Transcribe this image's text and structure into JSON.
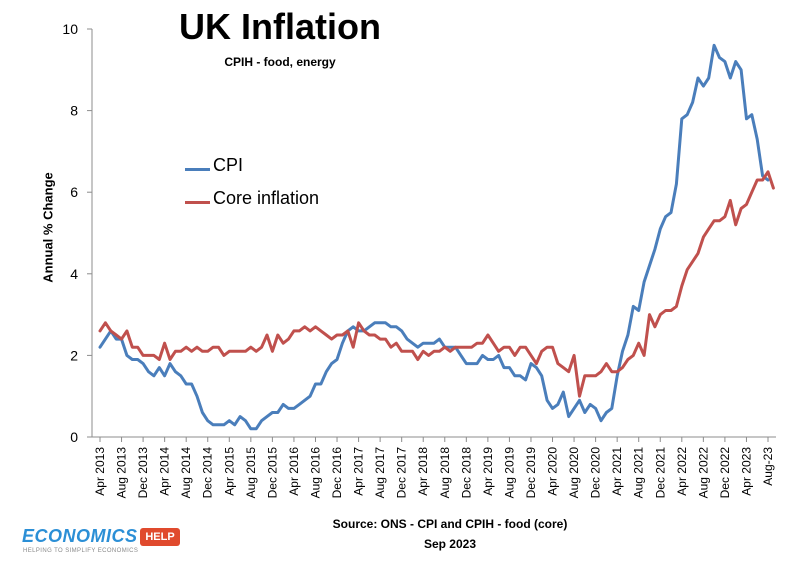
{
  "chart_data": {
    "type": "line",
    "title": "UK Inflation",
    "subtitle": "CPIH - food, energy",
    "ylabel": "Annual % Change",
    "xlabel": "",
    "ylim": [
      0,
      10
    ],
    "yticks": [
      0,
      2,
      4,
      6,
      8,
      10
    ],
    "x_tick_labels": [
      "Apr 2013",
      "Aug 2013",
      "Dec 2013",
      "Apr 2014",
      "Aug 2014",
      "Dec 2014",
      "Apr 2015",
      "Aug 2015",
      "Dec 2015",
      "Apr 2016",
      "Aug 2016",
      "Dec 2016",
      "Apr 2017",
      "Aug 2017",
      "Dec 2017",
      "Apr 2018",
      "Aug 2018",
      "Dec 2018",
      "Apr 2019",
      "Aug 2019",
      "Dec 2019",
      "Apr 2020",
      "Aug 2020",
      "Dec 2020",
      "Apr 2021",
      "Aug 2021",
      "Dec 2021",
      "Apr 2022",
      "Aug 2022",
      "Dec 2022",
      "Apr 2023",
      "Aug-23"
    ],
    "legend_position": "left-middle",
    "series": [
      {
        "name": "CPI",
        "color": "#4a7ebb",
        "values": [
          2.2,
          2.4,
          2.6,
          2.4,
          2.4,
          2.0,
          1.9,
          1.9,
          1.8,
          1.6,
          1.5,
          1.7,
          1.5,
          1.8,
          1.6,
          1.5,
          1.3,
          1.3,
          1.0,
          0.6,
          0.4,
          0.3,
          0.3,
          0.3,
          0.4,
          0.3,
          0.5,
          0.4,
          0.2,
          0.2,
          0.4,
          0.5,
          0.6,
          0.6,
          0.8,
          0.7,
          0.7,
          0.8,
          0.9,
          1.0,
          1.3,
          1.3,
          1.6,
          1.8,
          1.9,
          2.3,
          2.6,
          2.7,
          2.6,
          2.6,
          2.7,
          2.8,
          2.8,
          2.8,
          2.7,
          2.7,
          2.6,
          2.4,
          2.3,
          2.2,
          2.3,
          2.3,
          2.3,
          2.4,
          2.2,
          2.2,
          2.2,
          2.0,
          1.8,
          1.8,
          1.8,
          2.0,
          1.9,
          1.9,
          2.0,
          1.7,
          1.7,
          1.5,
          1.5,
          1.4,
          1.8,
          1.7,
          1.5,
          0.9,
          0.7,
          0.8,
          1.1,
          0.5,
          0.7,
          0.9,
          0.6,
          0.8,
          0.7,
          0.4,
          0.6,
          0.7,
          1.5,
          2.1,
          2.5,
          3.2,
          3.1,
          3.8,
          4.2,
          4.6,
          5.1,
          5.4,
          5.5,
          6.2,
          7.8,
          7.9,
          8.2,
          8.8,
          8.6,
          8.8,
          9.6,
          9.3,
          9.2,
          8.8,
          9.2,
          9.0,
          7.8,
          7.9,
          7.3,
          6.4,
          6.3
        ],
        "_note": "monthly Apr 2013 – Aug 2023 (some months interpolated)"
      },
      {
        "name": "Core inflation",
        "color": "#c0504d",
        "values": [
          2.6,
          2.8,
          2.6,
          2.5,
          2.4,
          2.6,
          2.2,
          2.2,
          2.0,
          2.0,
          2.0,
          1.9,
          2.3,
          1.9,
          2.1,
          2.1,
          2.2,
          2.1,
          2.2,
          2.1,
          2.1,
          2.2,
          2.2,
          2.0,
          2.1,
          2.1,
          2.1,
          2.1,
          2.2,
          2.1,
          2.2,
          2.5,
          2.1,
          2.5,
          2.3,
          2.4,
          2.6,
          2.6,
          2.7,
          2.6,
          2.7,
          2.6,
          2.5,
          2.4,
          2.5,
          2.5,
          2.6,
          2.2,
          2.8,
          2.6,
          2.5,
          2.5,
          2.4,
          2.4,
          2.2,
          2.3,
          2.1,
          2.1,
          2.1,
          1.9,
          2.1,
          2.0,
          2.1,
          2.1,
          2.2,
          2.1,
          2.2,
          2.2,
          2.2,
          2.2,
          2.3,
          2.3,
          2.5,
          2.3,
          2.1,
          2.2,
          2.2,
          2.0,
          2.2,
          2.2,
          2.0,
          1.8,
          2.1,
          2.2,
          2.2,
          1.8,
          1.7,
          1.6,
          2.0,
          1.0,
          1.5,
          1.5,
          1.5,
          1.6,
          1.8,
          1.6,
          1.6,
          1.7,
          1.9,
          2.0,
          2.3,
          2.0,
          3.0,
          2.7,
          3.0,
          3.1,
          3.1,
          3.2,
          3.7,
          4.1,
          4.3,
          4.5,
          4.9,
          5.1,
          5.3,
          5.3,
          5.4,
          5.8,
          5.2,
          5.6,
          5.7,
          6.0,
          6.3,
          6.3,
          6.5,
          6.1
        ],
        "_note": "monthly Apr 2013 – Aug 2023 (some months interpolated)"
      }
    ],
    "source_line1": "Source: ONS - CPI and CPIH - food (core)",
    "source_line2": "Sep 2023"
  },
  "legend": {
    "cpi_label": "CPI",
    "core_label": "Core inflation"
  },
  "branding": {
    "logo_text": "ECONOMICS",
    "logo_tag": "HELP",
    "logo_subtext": "HELPING TO SIMPLIFY ECONOMICS"
  }
}
